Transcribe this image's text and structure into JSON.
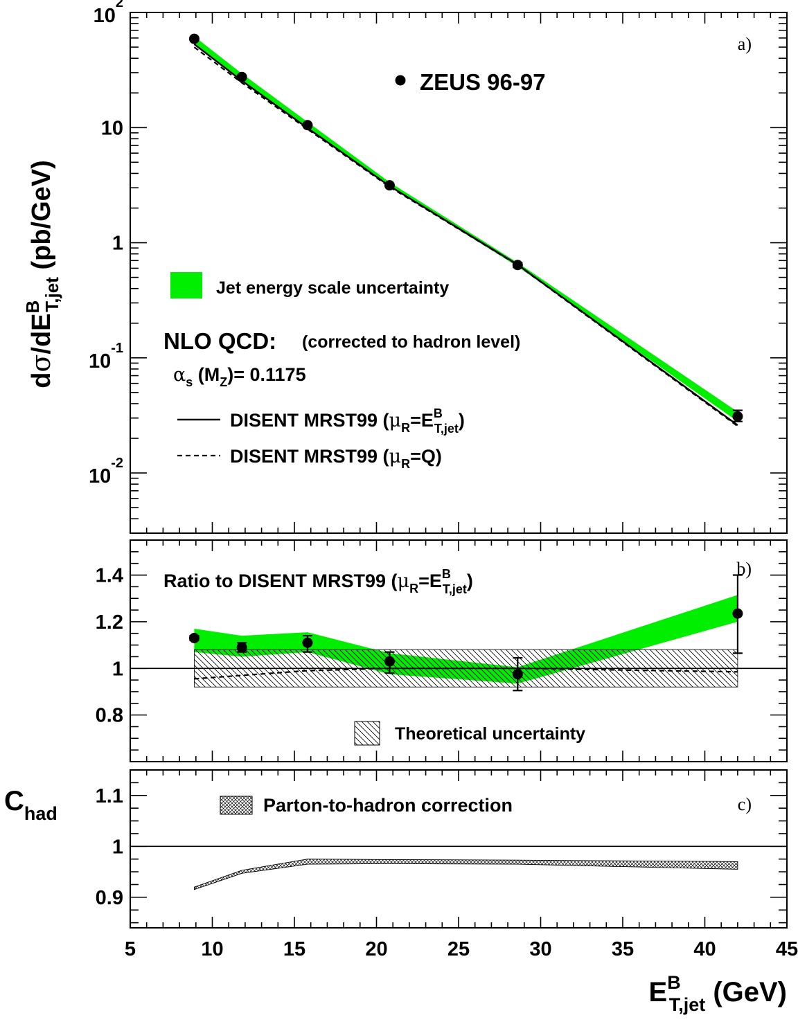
{
  "chart_data": [
    {
      "panel": "a",
      "type": "line",
      "panel_label": "a)",
      "ylabel": "dσ/dE_T,jet^B (pb/GeV)",
      "yscale": "log",
      "ylim": [
        0.003,
        100
      ],
      "xlim": [
        5,
        45
      ],
      "ytick_labels": [
        "10^2",
        "10",
        "1",
        "10^-1",
        "10^-2"
      ],
      "ytick_values": [
        100,
        10,
        1,
        0.1,
        0.01
      ],
      "data_series": {
        "name": "ZEUS 96-97",
        "x": [
          8.9,
          11.8,
          15.8,
          20.8,
          28.6,
          42.0
        ],
        "y": [
          59,
          27.5,
          10.5,
          3.15,
          0.64,
          0.031
        ],
        "yerr_low": [
          1.5,
          0.8,
          0.3,
          0.1,
          0.03,
          0.003
        ],
        "yerr_high": [
          1.5,
          0.8,
          0.3,
          0.1,
          0.03,
          0.004
        ]
      },
      "theory_solid": {
        "name": "DISENT MRST99 (μR=E_T,jet^B)",
        "x": [
          8.9,
          11.8,
          15.8,
          20.8,
          28.6,
          42.0
        ],
        "y": [
          53,
          25.5,
          9.9,
          3.1,
          0.645,
          0.026
        ]
      },
      "theory_dashed": {
        "name": "DISENT MRST99 (μR=Q)",
        "x": [
          8.9,
          11.8,
          15.8,
          20.8,
          28.6,
          42.0
        ],
        "y": [
          50,
          24.5,
          9.7,
          3.05,
          0.64,
          0.0255
        ]
      },
      "jes_band": {
        "name": "Jet energy scale uncertainty",
        "x": [
          8.9,
          11.8,
          15.8,
          20.8,
          28.6,
          42.0
        ],
        "low": [
          54,
          25.8,
          10.1,
          3.08,
          0.62,
          0.028
        ],
        "high": [
          62,
          29.5,
          11.2,
          3.35,
          0.67,
          0.034
        ]
      },
      "legend": {
        "zeus": "ZEUS 96-97",
        "jes": "Jet energy scale uncertainty",
        "nlo_title": "NLO QCD:",
        "nlo_note": "(corrected to hadron level)",
        "alpha_s": "αs (MZ)= 0.1175",
        "solid": "DISENT MRST99 (μR=E_T,jet^B)",
        "dashed": "DISENT MRST99 (μR=Q)"
      }
    },
    {
      "panel": "b",
      "type": "line",
      "panel_label": "b)",
      "title": "Ratio to DISENT MRST99 (μR=E_T,jet^B)",
      "ylim": [
        0.6,
        1.55
      ],
      "ytick_labels": [
        "1.4",
        "1.2",
        "1",
        "0.8"
      ],
      "ytick_values": [
        1.4,
        1.2,
        1.0,
        0.8
      ],
      "data_series": {
        "x": [
          8.9,
          11.8,
          15.8,
          20.8,
          28.6,
          42.0
        ],
        "y": [
          1.13,
          1.09,
          1.11,
          1.03,
          0.975,
          1.235
        ],
        "yerr_low": [
          0.01,
          0.02,
          0.04,
          0.05,
          0.07,
          0.17
        ],
        "yerr_high": [
          0.01,
          0.02,
          0.03,
          0.04,
          0.07,
          0.165
        ]
      },
      "dashed_ratio": {
        "x": [
          8.9,
          11.8,
          15.8,
          20.8,
          28.6,
          42.0
        ],
        "y": [
          0.955,
          0.97,
          0.99,
          1.0,
          1.0,
          0.985
        ]
      },
      "jes_band": {
        "x": [
          8.9,
          11.8,
          15.8,
          20.8,
          28.6,
          42.0
        ],
        "low": [
          1.07,
          1.05,
          1.07,
          0.975,
          0.935,
          1.2
        ],
        "high": [
          1.17,
          1.14,
          1.155,
          1.065,
          1.005,
          1.315
        ]
      },
      "theory_band": {
        "name": "Theoretical uncertainty",
        "x": [
          8.9,
          42.0
        ],
        "low": 0.92,
        "high": 1.08
      },
      "reference_line": 1.0
    },
    {
      "panel": "c",
      "type": "line",
      "panel_label": "c)",
      "ylabel": "C_had",
      "ylim": [
        0.84,
        1.15
      ],
      "ytick_labels": [
        "1.1",
        "1",
        "0.9"
      ],
      "ytick_values": [
        1.1,
        1.0,
        0.9
      ],
      "chad_band": {
        "name": "Parton-to-hadron correction",
        "x": [
          8.9,
          11.8,
          15.8,
          20.8,
          28.6,
          42.0
        ],
        "low": [
          0.915,
          0.947,
          0.965,
          0.966,
          0.965,
          0.955
        ],
        "high": [
          0.92,
          0.953,
          0.975,
          0.974,
          0.973,
          0.97
        ]
      },
      "reference_line": 1.0,
      "xlabel": "E_T,jet^B (GeV)",
      "xtick_labels": [
        "5",
        "10",
        "15",
        "20",
        "25",
        "30",
        "35",
        "40",
        "45"
      ],
      "xtick_values": [
        5,
        10,
        15,
        20,
        25,
        30,
        35,
        40,
        45
      ]
    }
  ],
  "colors": {
    "jes_band": "#00ee00",
    "axes": "#000000",
    "background": "#ffffff"
  }
}
